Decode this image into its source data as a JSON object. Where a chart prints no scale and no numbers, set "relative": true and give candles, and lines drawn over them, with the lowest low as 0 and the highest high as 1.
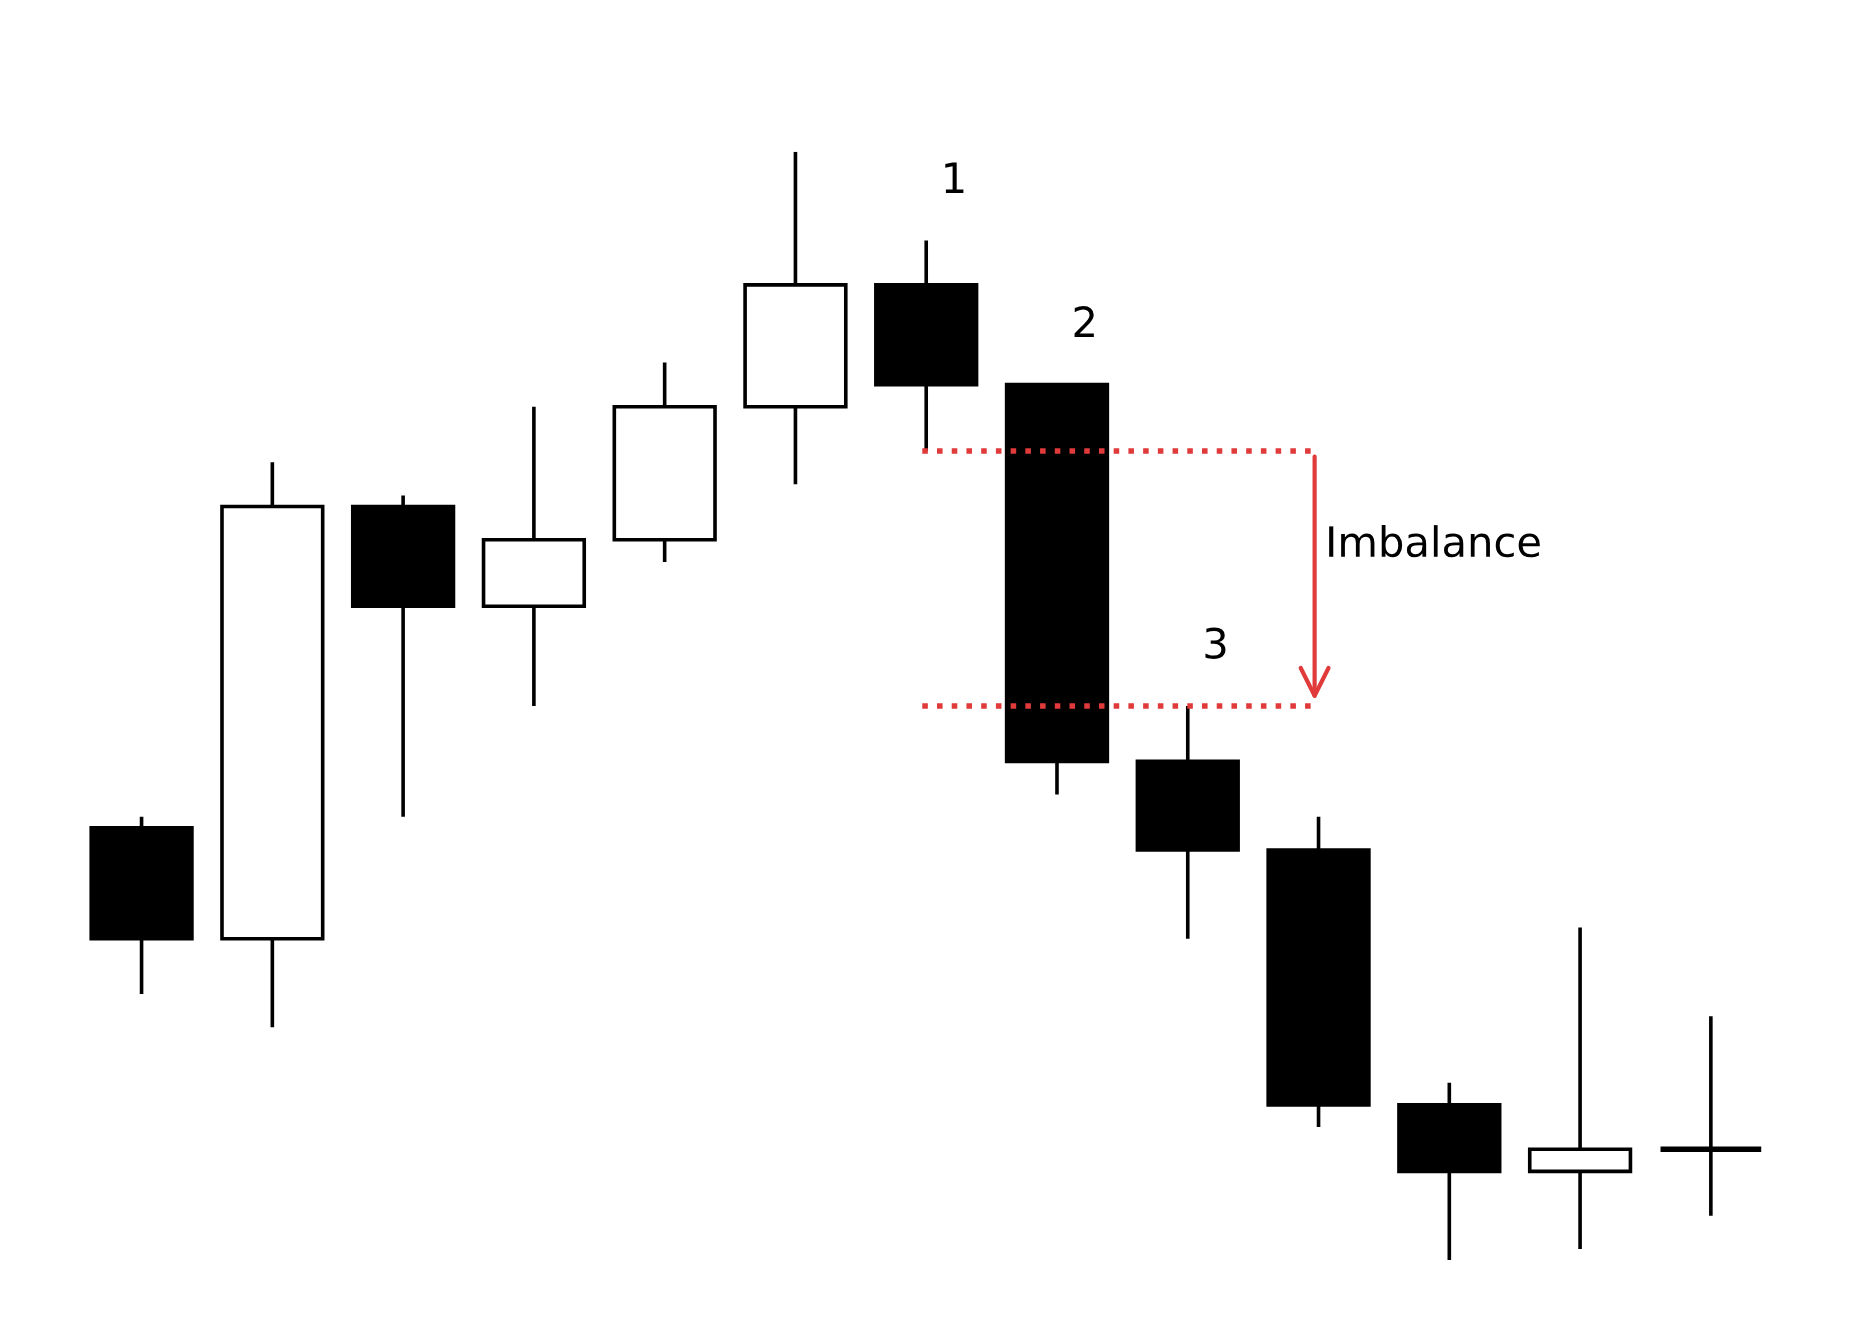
{
  "chart_data": {
    "type": "candlestick",
    "relative": true,
    "categories": [
      null,
      null,
      null,
      null,
      null,
      null,
      null,
      null,
      null,
      null,
      null,
      null,
      null
    ],
    "ohlc": [
      [
        0.39,
        0.4,
        0.24,
        0.29
      ],
      [
        0.29,
        0.72,
        0.21,
        0.68
      ],
      [
        0.68,
        0.69,
        0.4,
        0.59
      ],
      [
        0.59,
        0.77,
        0.5,
        0.65
      ],
      [
        0.65,
        0.81,
        0.63,
        0.77
      ],
      [
        0.77,
        1.0,
        0.7,
        0.88
      ],
      [
        0.88,
        0.92,
        0.73,
        0.79
      ],
      [
        0.79,
        0.79,
        0.42,
        0.45
      ],
      [
        0.45,
        0.5,
        0.29,
        0.37
      ],
      [
        0.37,
        0.4,
        0.12,
        0.14
      ],
      [
        0.14,
        0.16,
        0.0,
        0.08
      ],
      [
        0.08,
        0.3,
        0.01,
        0.1
      ],
      [
        0.1,
        0.22,
        0.04,
        0.1
      ]
    ],
    "colors": [
      "#000000",
      "#ffffff",
      "#000000",
      "#ffffff",
      "#ffffff",
      "#ffffff",
      "#000000",
      "#000000",
      "#000000",
      "#000000",
      "#000000",
      "#ffffff",
      "#000000"
    ],
    "annotations": [
      "1",
      "2",
      "3",
      "Imbalance"
    ],
    "ref_lines": [
      {
        "axis": "y",
        "value": 0.73,
        "color": "#e03a3a",
        "line_style": "dotted"
      },
      {
        "axis": "y",
        "value": 0.5,
        "color": "#e03a3a",
        "line_style": "dotted"
      }
    ],
    "grid": false
  }
}
